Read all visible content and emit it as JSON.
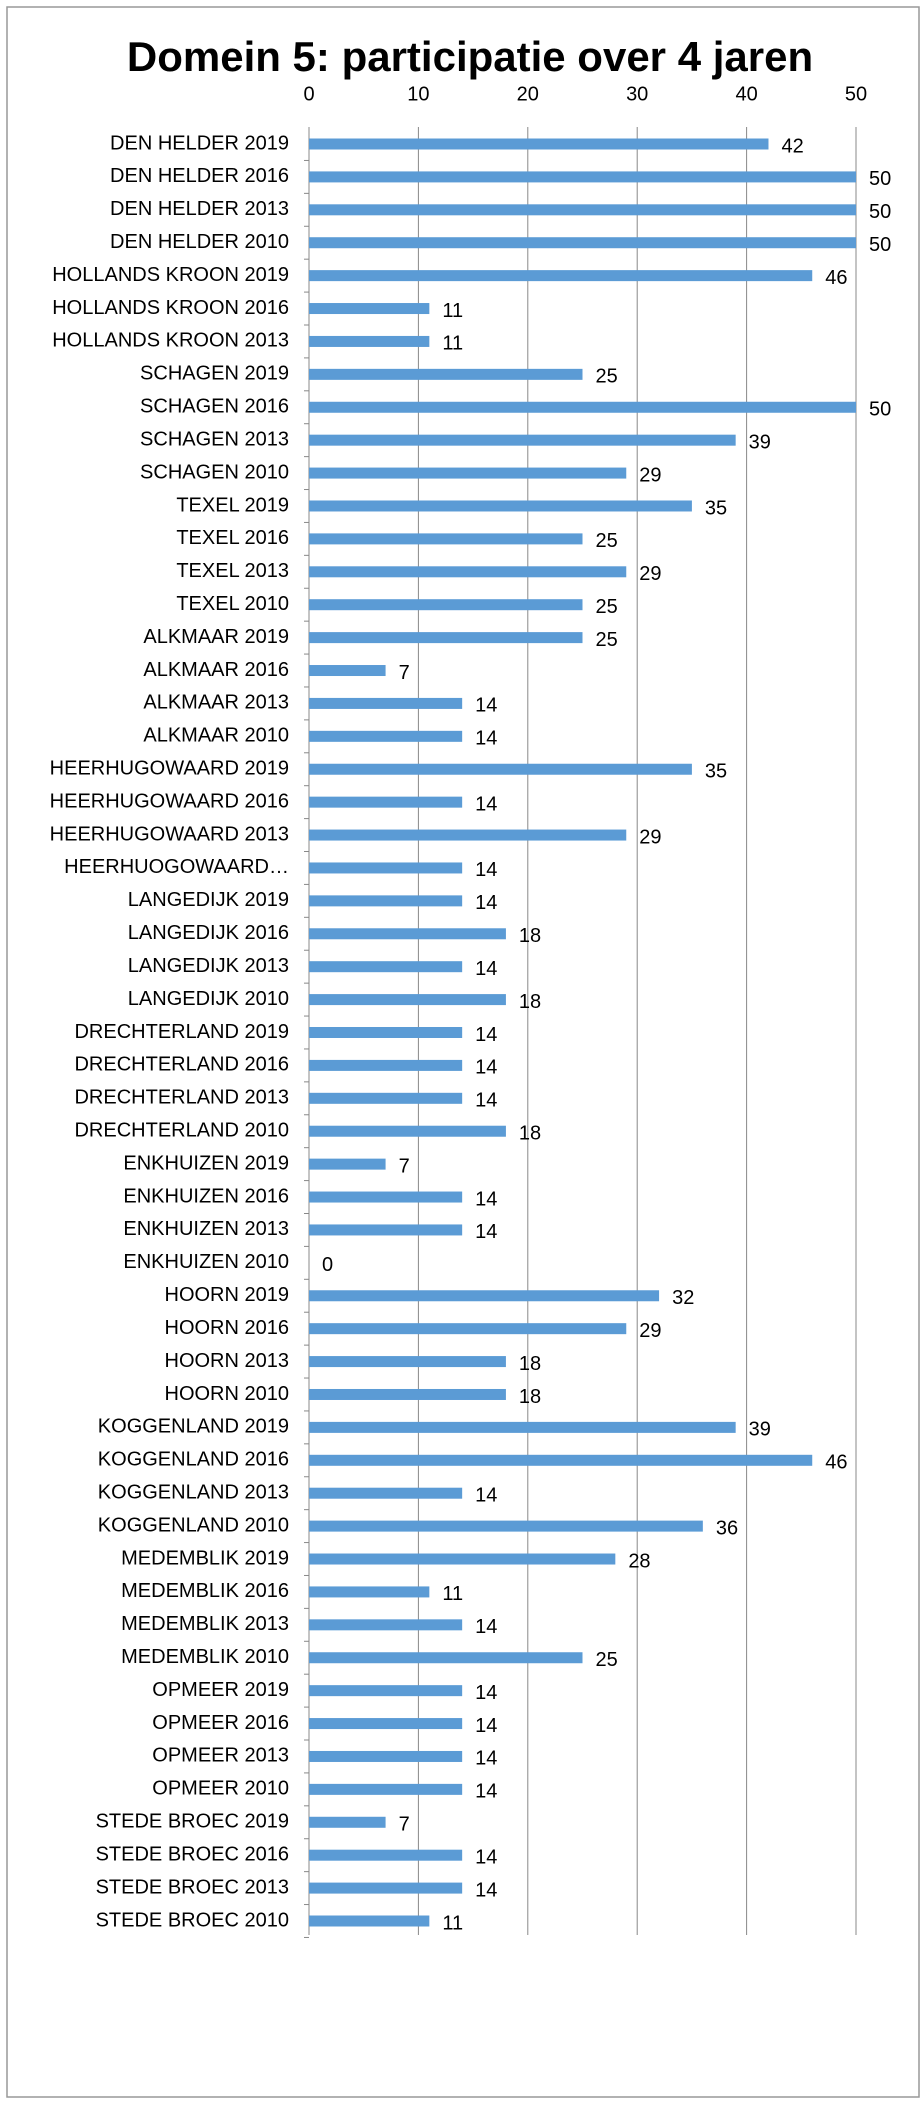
{
  "chart_data": {
    "type": "barh",
    "title": "Domein 5: participatie over 4 jaren",
    "categories": [
      "DEN HELDER 2019",
      "DEN HELDER 2016",
      "DEN HELDER 2013",
      "DEN HELDER 2010",
      "HOLLANDS KROON 2019",
      "HOLLANDS KROON 2016",
      "HOLLANDS KROON 2013",
      "SCHAGEN 2019",
      "SCHAGEN 2016",
      "SCHAGEN 2013",
      "SCHAGEN 2010",
      "TEXEL 2019",
      "TEXEL 2016",
      "TEXEL 2013",
      "TEXEL 2010",
      "ALKMAAR 2019",
      "ALKMAAR 2016",
      "ALKMAAR 2013",
      "ALKMAAR 2010",
      "HEERHUGOWAARD 2019",
      "HEERHUGOWAARD 2016",
      "HEERHUGOWAARD 2013",
      "HEERHUOGOWAARD…",
      "LANGEDIJK 2019",
      "LANGEDIJK 2016",
      "LANGEDIJK 2013",
      "LANGEDIJK 2010",
      "DRECHTERLAND 2019",
      "DRECHTERLAND 2016",
      "DRECHTERLAND 2013",
      "DRECHTERLAND 2010",
      "ENKHUIZEN 2019",
      "ENKHUIZEN 2016",
      "ENKHUIZEN 2013",
      "ENKHUIZEN 2010",
      "HOORN 2019",
      "HOORN 2016",
      "HOORN 2013",
      "HOORN 2010",
      "KOGGENLAND 2019",
      "KOGGENLAND 2016",
      "KOGGENLAND 2013",
      "KOGGENLAND 2010",
      "MEDEMBLIK 2019",
      "MEDEMBLIK 2016",
      "MEDEMBLIK 2013",
      "MEDEMBLIK 2010",
      "OPMEER 2019",
      "OPMEER 2016",
      "OPMEER 2013",
      "OPMEER 2010",
      "STEDE BROEC 2019",
      "STEDE BROEC 2016",
      "STEDE BROEC 2013",
      "STEDE BROEC 2010"
    ],
    "values": [
      42,
      50,
      50,
      50,
      46,
      11,
      11,
      25,
      50,
      39,
      29,
      35,
      25,
      29,
      25,
      25,
      7,
      14,
      14,
      35,
      14,
      29,
      14,
      14,
      18,
      14,
      18,
      14,
      14,
      14,
      18,
      7,
      14,
      14,
      0,
      32,
      29,
      18,
      18,
      39,
      46,
      14,
      36,
      28,
      11,
      14,
      25,
      14,
      14,
      14,
      14,
      7,
      14,
      14,
      11
    ],
    "color": "#5b9bd5",
    "xlim": [
      0,
      50
    ],
    "xticks": [
      0,
      10,
      20,
      30,
      40,
      50
    ],
    "grid": true
  }
}
